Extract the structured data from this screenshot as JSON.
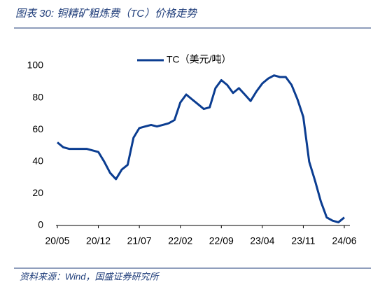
{
  "chart_data": {
    "type": "line",
    "title": "图表 30:  铜精矿粗炼费（TC）价格走势",
    "source": "资料来源：Wind，国盛证券研究所",
    "x": [
      "20/05",
      "20/06",
      "20/07",
      "20/08",
      "20/09",
      "20/10",
      "20/11",
      "20/12",
      "21/01",
      "21/02",
      "21/03",
      "21/04",
      "21/05",
      "21/06",
      "21/07",
      "21/08",
      "21/09",
      "21/10",
      "21/11",
      "21/12",
      "22/01",
      "22/02",
      "22/03",
      "22/04",
      "22/05",
      "22/06",
      "22/07",
      "22/08",
      "22/09",
      "22/10",
      "22/11",
      "22/12",
      "23/01",
      "23/02",
      "23/03",
      "23/04",
      "23/05",
      "23/06",
      "23/07",
      "23/08",
      "23/09",
      "23/10",
      "23/11",
      "23/12",
      "24/01",
      "24/02",
      "24/03",
      "24/04",
      "24/05",
      "24/06"
    ],
    "xticks": [
      "20/05",
      "20/12",
      "21/07",
      "22/02",
      "22/09",
      "23/04",
      "23/11",
      "24/06"
    ],
    "series": [
      {
        "name": "TC（美元/吨）",
        "color": "#0b3d91",
        "values": [
          52,
          49,
          48,
          48,
          48,
          48,
          47,
          46,
          40,
          33,
          29,
          35,
          38,
          55,
          61,
          62,
          63,
          62,
          63,
          64,
          66,
          77,
          82,
          79,
          76,
          73,
          74,
          86,
          91,
          88,
          83,
          86,
          82,
          78,
          84,
          89,
          92,
          94,
          93,
          93,
          88,
          79,
          68,
          40,
          28,
          15,
          5,
          3,
          2,
          5
        ]
      }
    ],
    "ylim": [
      0,
      100
    ],
    "yticks": [
      0,
      20,
      40,
      60,
      80,
      100
    ],
    "grid": false,
    "legend": "top"
  }
}
